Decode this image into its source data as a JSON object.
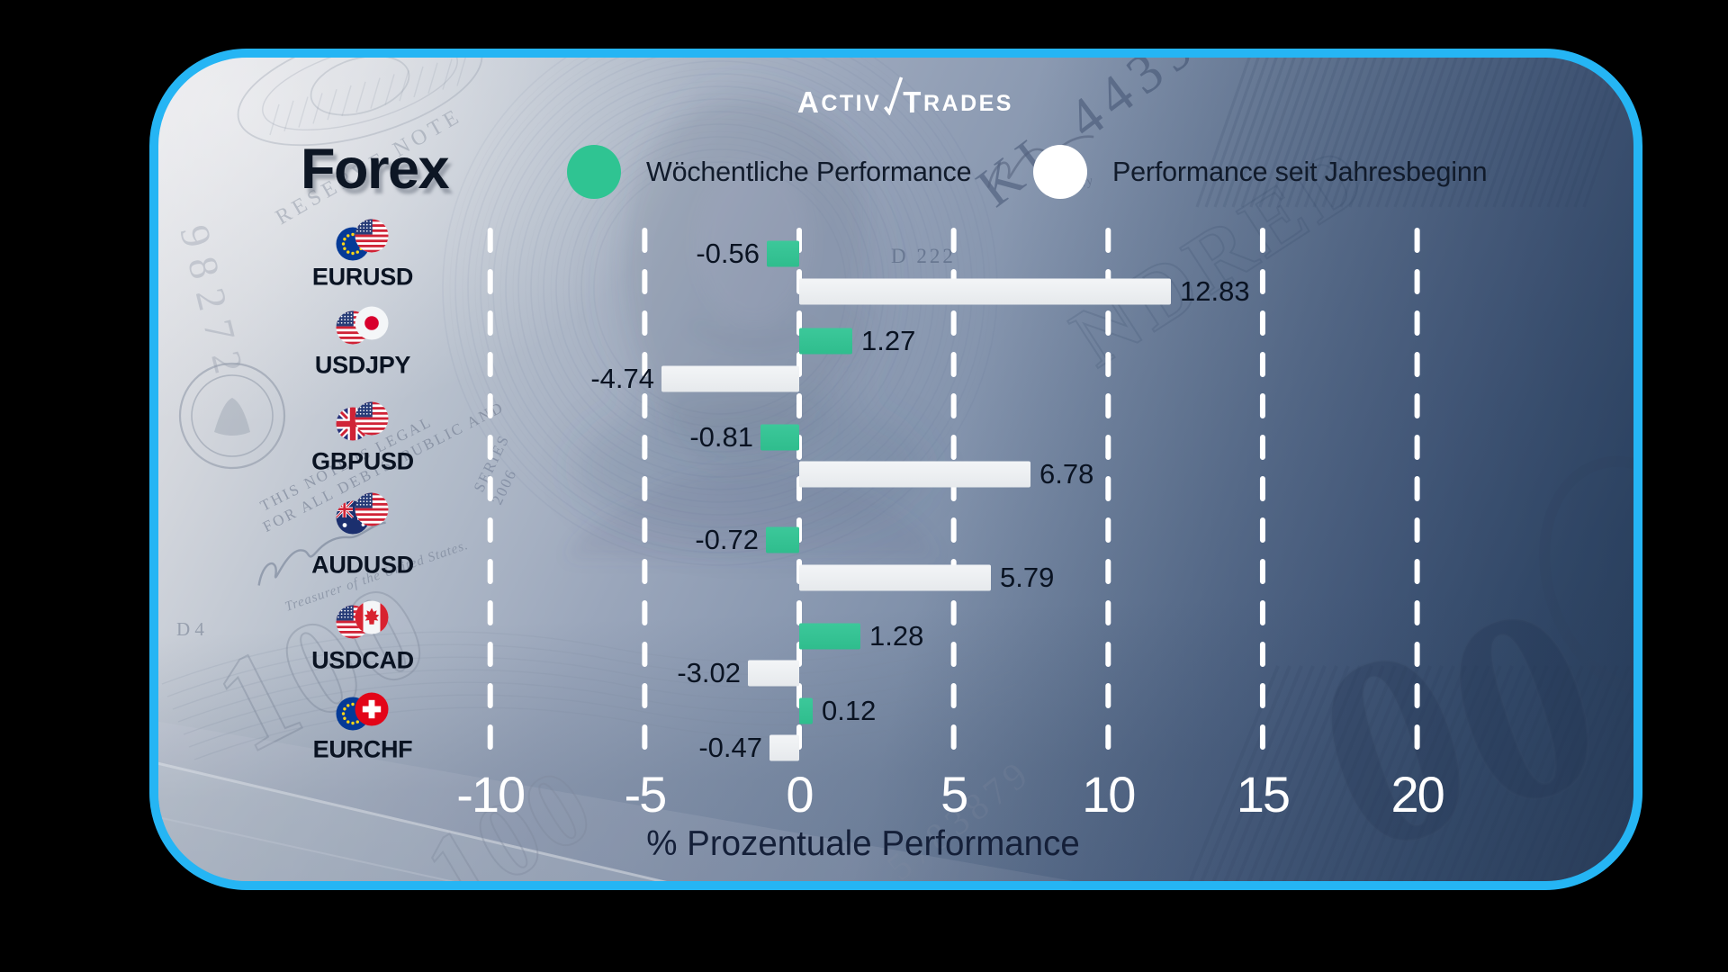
{
  "brand": {
    "name": "ActivTrades",
    "part1_initial": "A",
    "part1_rest": "CTIV",
    "part2_initial": "T",
    "part2_rest": "RADES"
  },
  "title": "Forex",
  "legend": [
    {
      "label": "Wöchentliche Performance",
      "swatch": "green-circle",
      "color": "#2fc492"
    },
    {
      "label": "Performance seit Jahresbeginn",
      "swatch": "white-circle",
      "color": "#ffffff"
    }
  ],
  "chart_data": {
    "type": "bar",
    "orientation": "horizontal",
    "title": "Forex",
    "categories": [
      "EURUSD",
      "USDJPY",
      "GBPUSD",
      "AUDUSD",
      "USDCAD",
      "EURCHF"
    ],
    "flag_pairs": [
      [
        "eu",
        "us"
      ],
      [
        "us",
        "jp"
      ],
      [
        "gb",
        "us"
      ],
      [
        "au",
        "us"
      ],
      [
        "us",
        "ca"
      ],
      [
        "eu",
        "ch"
      ]
    ],
    "series": [
      {
        "name": "Wöchentliche Performance",
        "color": "#2fbd8d",
        "values": [
          -0.56,
          1.27,
          -0.81,
          -0.72,
          1.28,
          0.12
        ]
      },
      {
        "name": "Performance seit Jahresbeginn",
        "color": "#e9ecef",
        "values": [
          12.83,
          -4.74,
          6.78,
          5.79,
          -3.02,
          -0.47
        ]
      }
    ],
    "xlabel": "% Prozentuale Performance",
    "x_ticks": [
      -10,
      -5,
      0,
      5,
      10,
      15,
      20
    ],
    "xlim": [
      -12.5,
      22.5
    ],
    "grid": "dashed-vertical-white",
    "legend_position": "top",
    "value_labels": "on"
  },
  "background": {
    "style": "US dollar bill collage, light top-left to dark steel blue bottom-right",
    "texture_texts": {
      "reserve_note": "RESERVE NOTE",
      "serial_left": "98272",
      "serial_right": "KL 44396",
      "plate_left": "D 4",
      "plate_right": "D 222",
      "legal_line1": "THIS NOTE IS LEGAL",
      "legal_line2": "FOR ALL DEBTS, PUBLIC AND",
      "treasurer": "Treasurer of the United States.",
      "secretary": "Secretary",
      "series_line1": "SERIES",
      "series_line2": "2006",
      "watermark_100": "100",
      "watermark_00": "00",
      "hundred_fragment": "NDRED",
      "serial_bottom": "5783879"
    }
  },
  "colors": {
    "border": "#25b5f4",
    "outside": "#000000",
    "bar_weekly": "#2fbd8d",
    "bar_ytd": "#e9ecef",
    "tick_text": "#ffffff",
    "label_text": "#0a1322"
  }
}
